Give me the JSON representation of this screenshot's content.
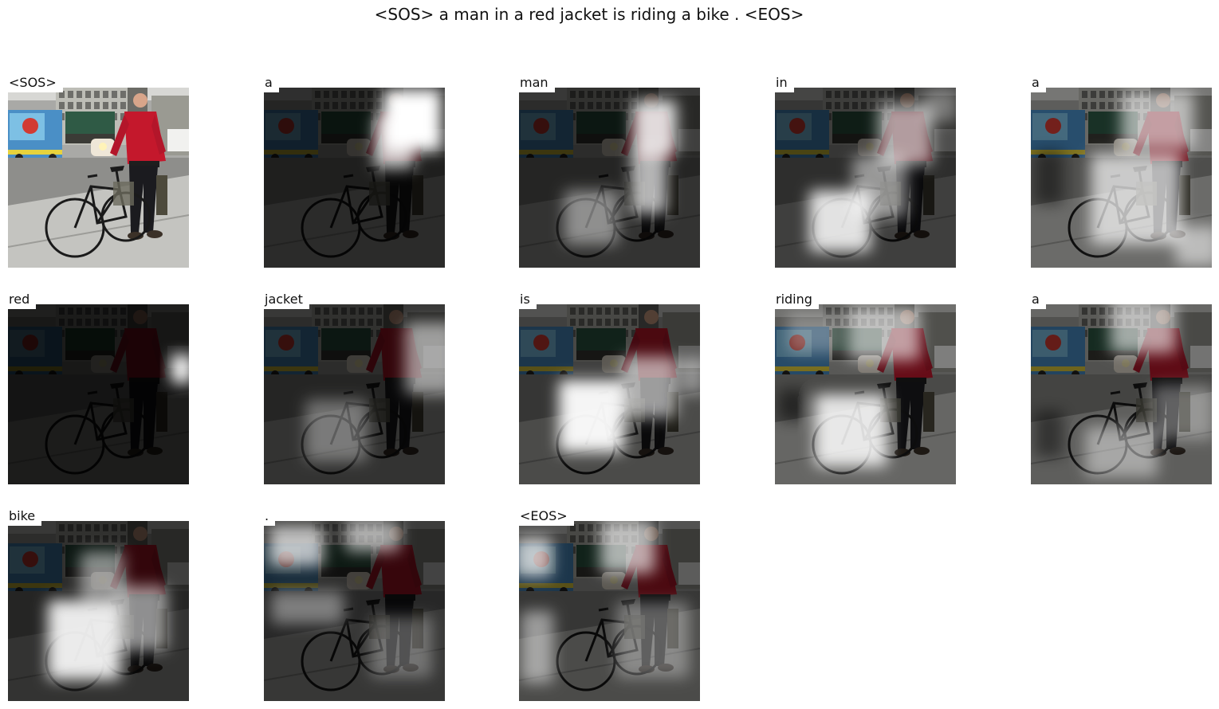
{
  "caption": "<SOS> a man in a red jacket is riding a bike . <EOS>",
  "panels": [
    {
      "word": "<SOS>",
      "dim": 0.0,
      "hot": []
    },
    {
      "word": "a",
      "dim": 0.78,
      "hot": [
        [
          0.82,
          0.18,
          0.32,
          0.34,
          1.0
        ],
        [
          0.72,
          0.3,
          0.22,
          0.3,
          0.75
        ]
      ]
    },
    {
      "word": "man",
      "dim": 0.74,
      "hot": [
        [
          0.75,
          0.22,
          0.24,
          0.3,
          0.85
        ],
        [
          0.72,
          0.52,
          0.2,
          0.36,
          0.7
        ],
        [
          0.4,
          0.72,
          0.3,
          0.3,
          0.45
        ]
      ]
    },
    {
      "word": "in",
      "dim": 0.68,
      "hot": [
        [
          0.36,
          0.74,
          0.34,
          0.34,
          0.85
        ],
        [
          0.72,
          0.26,
          0.3,
          0.34,
          0.6
        ],
        [
          0.58,
          0.55,
          0.3,
          0.34,
          0.5
        ],
        [
          0.92,
          0.1,
          0.18,
          0.18,
          0.35
        ]
      ]
    },
    {
      "word": "a",
      "dim": 0.45,
      "hot": [
        [
          0.58,
          0.62,
          0.5,
          0.5,
          0.7
        ],
        [
          0.7,
          0.18,
          0.4,
          0.32,
          0.6
        ],
        [
          0.92,
          0.88,
          0.24,
          0.22,
          0.55
        ],
        [
          0.1,
          0.5,
          0.16,
          0.3,
          -0.45
        ]
      ]
    },
    {
      "word": "red",
      "dim": 0.86,
      "hot": [
        [
          0.96,
          0.36,
          0.12,
          0.16,
          0.95
        ]
      ]
    },
    {
      "word": "jacket",
      "dim": 0.74,
      "hot": [
        [
          0.92,
          0.3,
          0.28,
          0.4,
          0.55
        ],
        [
          0.4,
          0.7,
          0.34,
          0.34,
          0.35
        ]
      ]
    },
    {
      "word": "is",
      "dim": 0.62,
      "hot": [
        [
          0.4,
          0.62,
          0.36,
          0.4,
          0.95
        ],
        [
          0.72,
          0.46,
          0.3,
          0.34,
          0.6
        ],
        [
          0.96,
          0.4,
          0.14,
          0.2,
          0.45
        ]
      ]
    },
    {
      "word": "riding",
      "dim": 0.48,
      "hot": [
        [
          0.42,
          0.7,
          0.4,
          0.4,
          0.85
        ],
        [
          0.6,
          0.16,
          0.4,
          0.3,
          0.6
        ],
        [
          0.22,
          0.16,
          0.3,
          0.22,
          0.3
        ],
        [
          0.1,
          0.56,
          0.16,
          0.18,
          -0.5
        ]
      ]
    },
    {
      "word": "a",
      "dim": 0.52,
      "hot": [
        [
          0.62,
          0.12,
          0.36,
          0.3,
          0.6
        ],
        [
          0.5,
          0.82,
          0.4,
          0.28,
          0.45
        ],
        [
          0.1,
          0.72,
          0.16,
          0.26,
          -0.45
        ],
        [
          0.84,
          0.6,
          0.34,
          0.3,
          0.35
        ]
      ]
    },
    {
      "word": "bike",
      "dim": 0.74,
      "hot": [
        [
          0.42,
          0.66,
          0.4,
          0.44,
          0.9
        ],
        [
          0.74,
          0.54,
          0.28,
          0.36,
          0.55
        ],
        [
          0.52,
          0.3,
          0.24,
          0.26,
          0.5
        ]
      ]
    },
    {
      "word": ".",
      "dim": 0.72,
      "hot": [
        [
          0.18,
          0.14,
          0.3,
          0.22,
          0.7
        ],
        [
          0.6,
          0.08,
          0.3,
          0.18,
          0.6
        ],
        [
          0.24,
          0.48,
          0.4,
          0.18,
          0.4
        ],
        [
          0.76,
          0.7,
          0.34,
          0.34,
          0.3
        ]
      ]
    },
    {
      "word": "<EOS>",
      "dim": 0.62,
      "hot": [
        [
          0.08,
          0.2,
          0.2,
          0.22,
          0.7
        ],
        [
          0.6,
          0.14,
          0.3,
          0.3,
          0.65
        ],
        [
          0.1,
          0.7,
          0.18,
          0.4,
          0.5
        ],
        [
          0.74,
          0.66,
          0.4,
          0.42,
          0.35
        ]
      ]
    }
  ]
}
